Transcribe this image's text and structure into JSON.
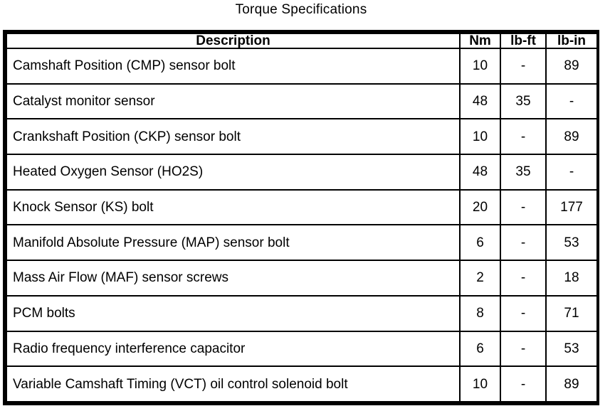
{
  "title": "Torque Specifications",
  "table": {
    "headers": [
      "Description",
      "Nm",
      "lb-ft",
      "lb-in"
    ],
    "rows": [
      [
        "Camshaft Position (CMP) sensor bolt",
        "10",
        "-",
        "89"
      ],
      [
        "Catalyst monitor sensor",
        "48",
        "35",
        "-"
      ],
      [
        "Crankshaft Position (CKP) sensor bolt",
        "10",
        "-",
        "89"
      ],
      [
        "Heated Oxygen Sensor (HO2S)",
        "48",
        "35",
        "-"
      ],
      [
        "Knock Sensor (KS) bolt",
        "20",
        "-",
        "177"
      ],
      [
        "Manifold Absolute Pressure (MAP) sensor bolt",
        "6",
        "-",
        "53"
      ],
      [
        "Mass Air Flow (MAF) sensor screws",
        "2",
        "-",
        "18"
      ],
      [
        "PCM bolts",
        "8",
        "-",
        "71"
      ],
      [
        "Radio frequency interference capacitor",
        "6",
        "-",
        "53"
      ],
      [
        "Variable Camshaft Timing (VCT) oil control solenoid bolt",
        "10",
        "-",
        "89"
      ]
    ]
  }
}
